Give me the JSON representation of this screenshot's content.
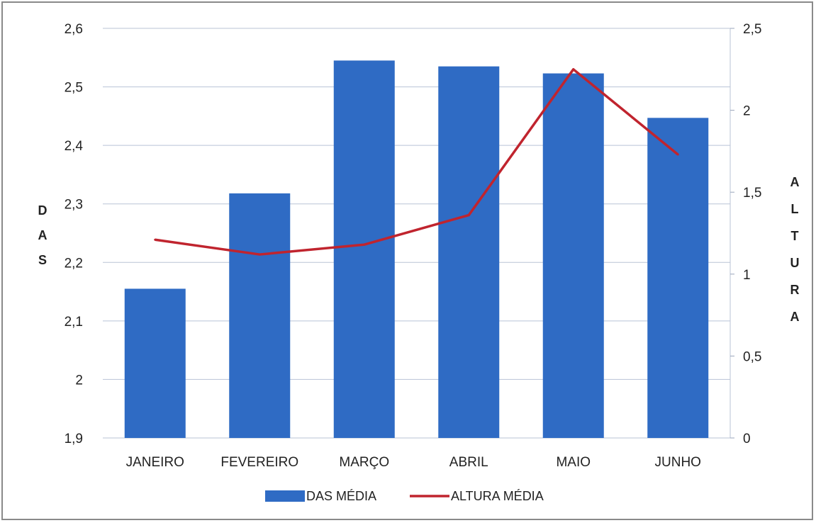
{
  "chart_data": {
    "type": "bar",
    "categories": [
      "JANEIRO",
      "FEVEREIRO",
      "MARÇO",
      "ABRIL",
      "MAIO",
      "JUNHO"
    ],
    "series": [
      {
        "name": "DAS MÉDIA",
        "type": "bar",
        "axis": "left",
        "color": "#2f6bc4",
        "values": [
          2.155,
          2.318,
          2.545,
          2.535,
          2.523,
          2.447
        ]
      },
      {
        "name": "ALTURA MÉDIA",
        "type": "line",
        "axis": "right",
        "color": "#c0242e",
        "values": [
          1.21,
          1.12,
          1.18,
          1.36,
          2.25,
          1.73
        ]
      }
    ],
    "y_left": {
      "label": "DAS",
      "ylim": [
        1.9,
        2.6
      ],
      "ticks": [
        "1,9",
        "2",
        "2,1",
        "2,2",
        "2,3",
        "2,4",
        "2,5",
        "2,6"
      ]
    },
    "y_right": {
      "label": "ALTURA",
      "ylim": [
        0,
        2.5
      ],
      "ticks": [
        "0",
        "0,5",
        "1",
        "1,5",
        "2",
        "2,5"
      ]
    },
    "grid": true,
    "legend_position": "bottom"
  }
}
